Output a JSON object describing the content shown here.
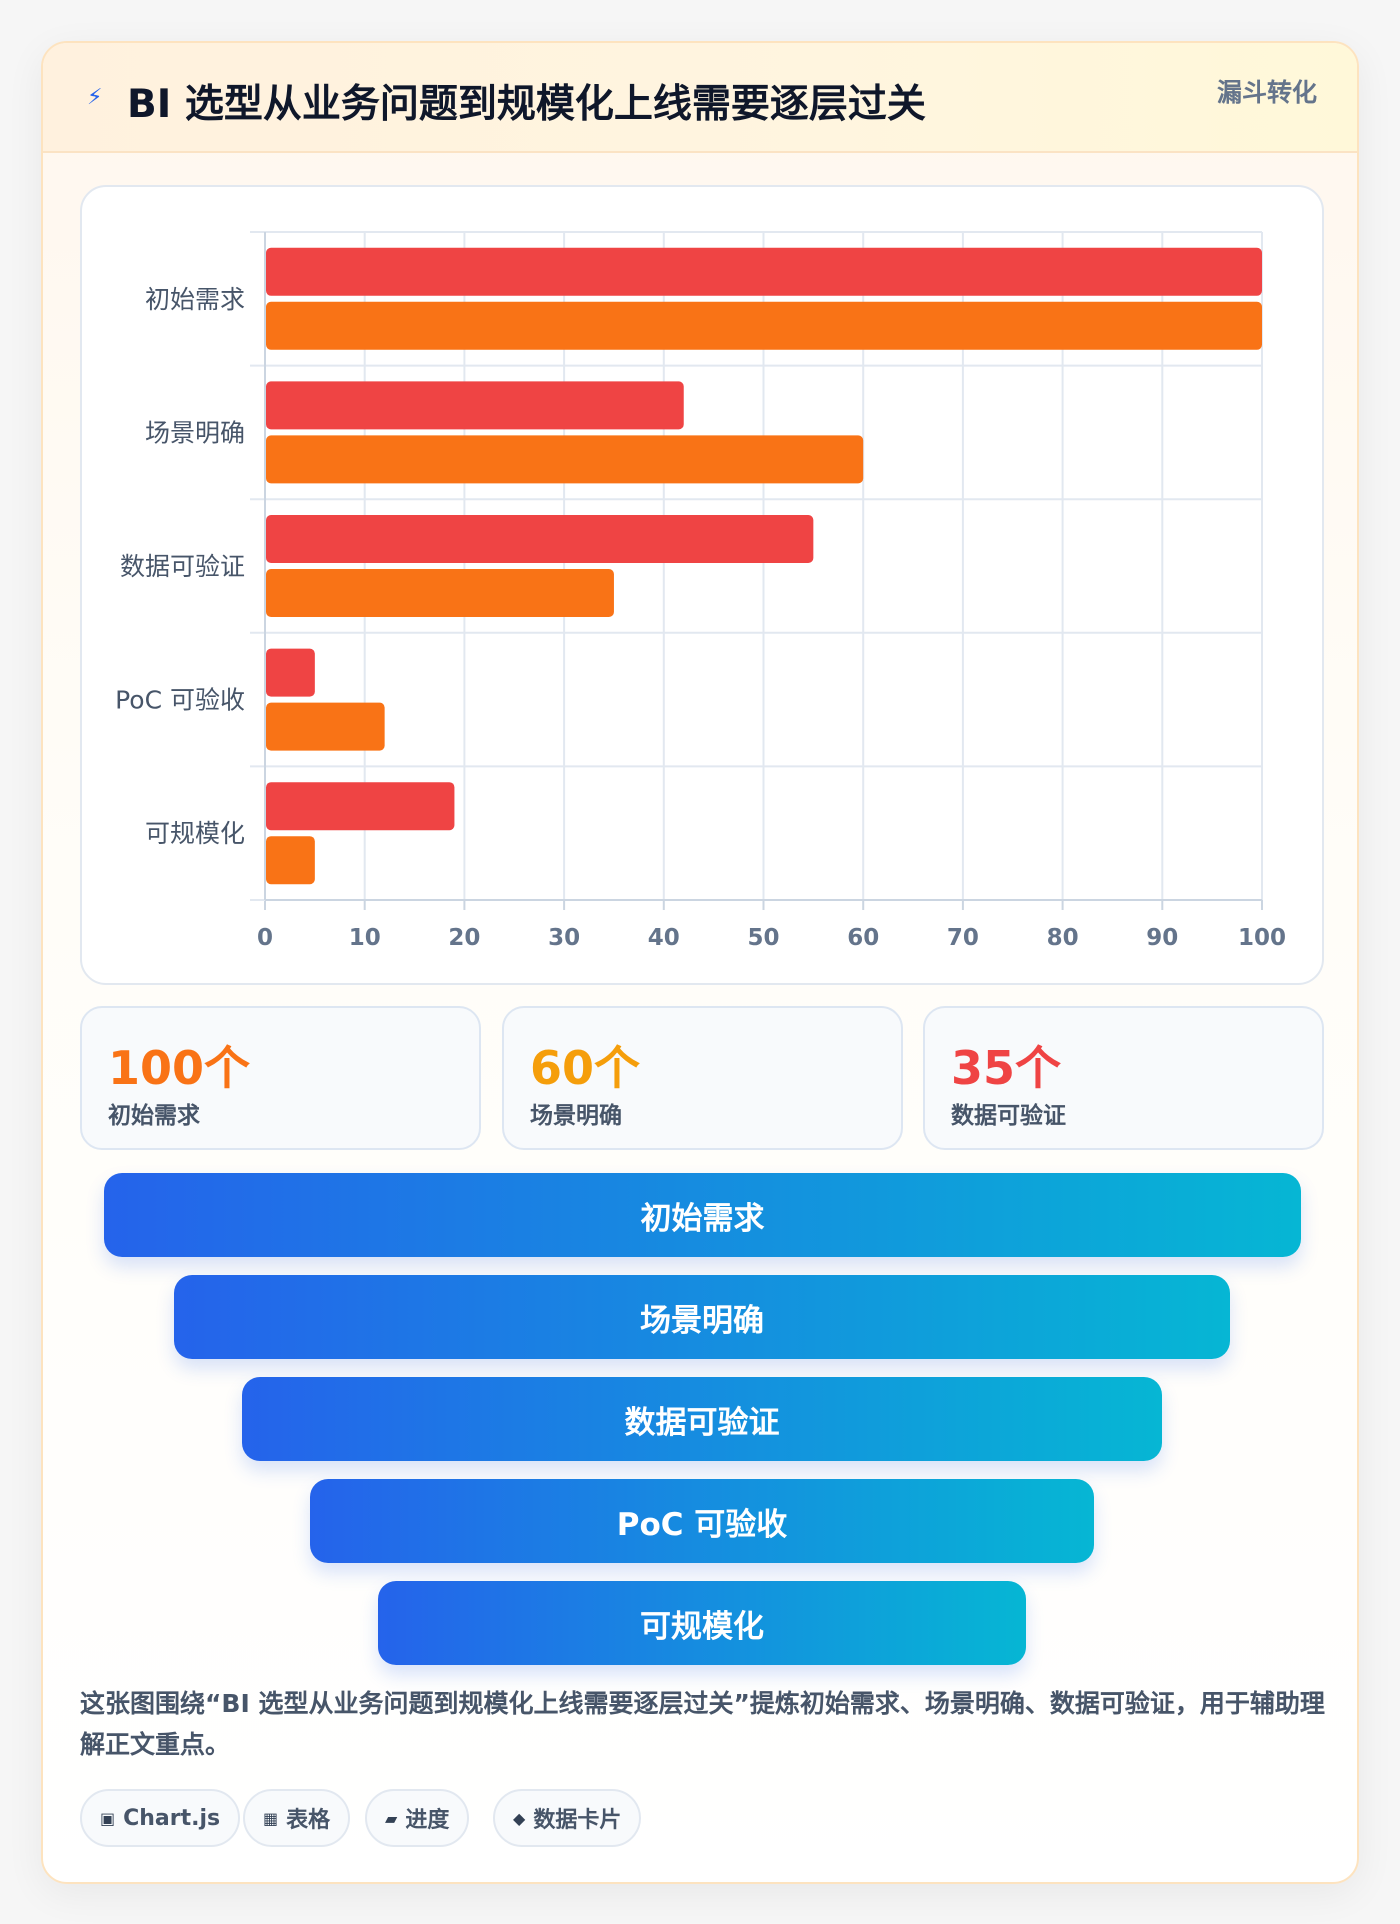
{
  "header": {
    "icon": "lightning-icon",
    "title": "BI 选型从业务问题到规模化上线需要逐层过关",
    "tag": "漏斗转化"
  },
  "chart_data": {
    "type": "bar",
    "orientation": "horizontal",
    "categories": [
      "初始需求",
      "场景明确",
      "数据可验证",
      "PoC 可验收",
      "可规模化"
    ],
    "series": [
      {
        "values": [
          100,
          42,
          55,
          5,
          19
        ],
        "color": "#ef4444"
      },
      {
        "values": [
          100,
          60,
          35,
          12,
          5
        ],
        "color": "#f97316"
      }
    ],
    "xlim": [
      0,
      100
    ],
    "xticks": [
      0,
      10,
      20,
      30,
      40,
      50,
      60,
      70,
      80,
      90,
      100
    ],
    "grid": true,
    "legend": "none"
  },
  "stats": [
    {
      "value": "100个",
      "label": "初始需求",
      "color": "#f97316"
    },
    {
      "value": "60个",
      "label": "场景明确",
      "color": "#f59e0b"
    },
    {
      "value": "35个",
      "label": "数据可验证",
      "color": "#ef4444"
    }
  ],
  "funnel": [
    "初始需求",
    "场景明确",
    "数据可验证",
    "PoC 可验收",
    "可规模化"
  ],
  "description": "这张图围绕“BI 选型从业务问题到规模化上线需要逐层过关”提炼初始需求、场景明确、数据可验证，用于辅助理解正文重点。",
  "chips": [
    {
      "icon": "▣",
      "icon_name": "chart-icon",
      "label": "Chart.js"
    },
    {
      "icon": "▦",
      "icon_name": "table-icon",
      "label": "表格"
    },
    {
      "icon": "▰",
      "icon_name": "progress-icon",
      "label": "进度"
    },
    {
      "icon": "◆",
      "icon_name": "data-card-icon",
      "label": "数据卡片"
    }
  ]
}
